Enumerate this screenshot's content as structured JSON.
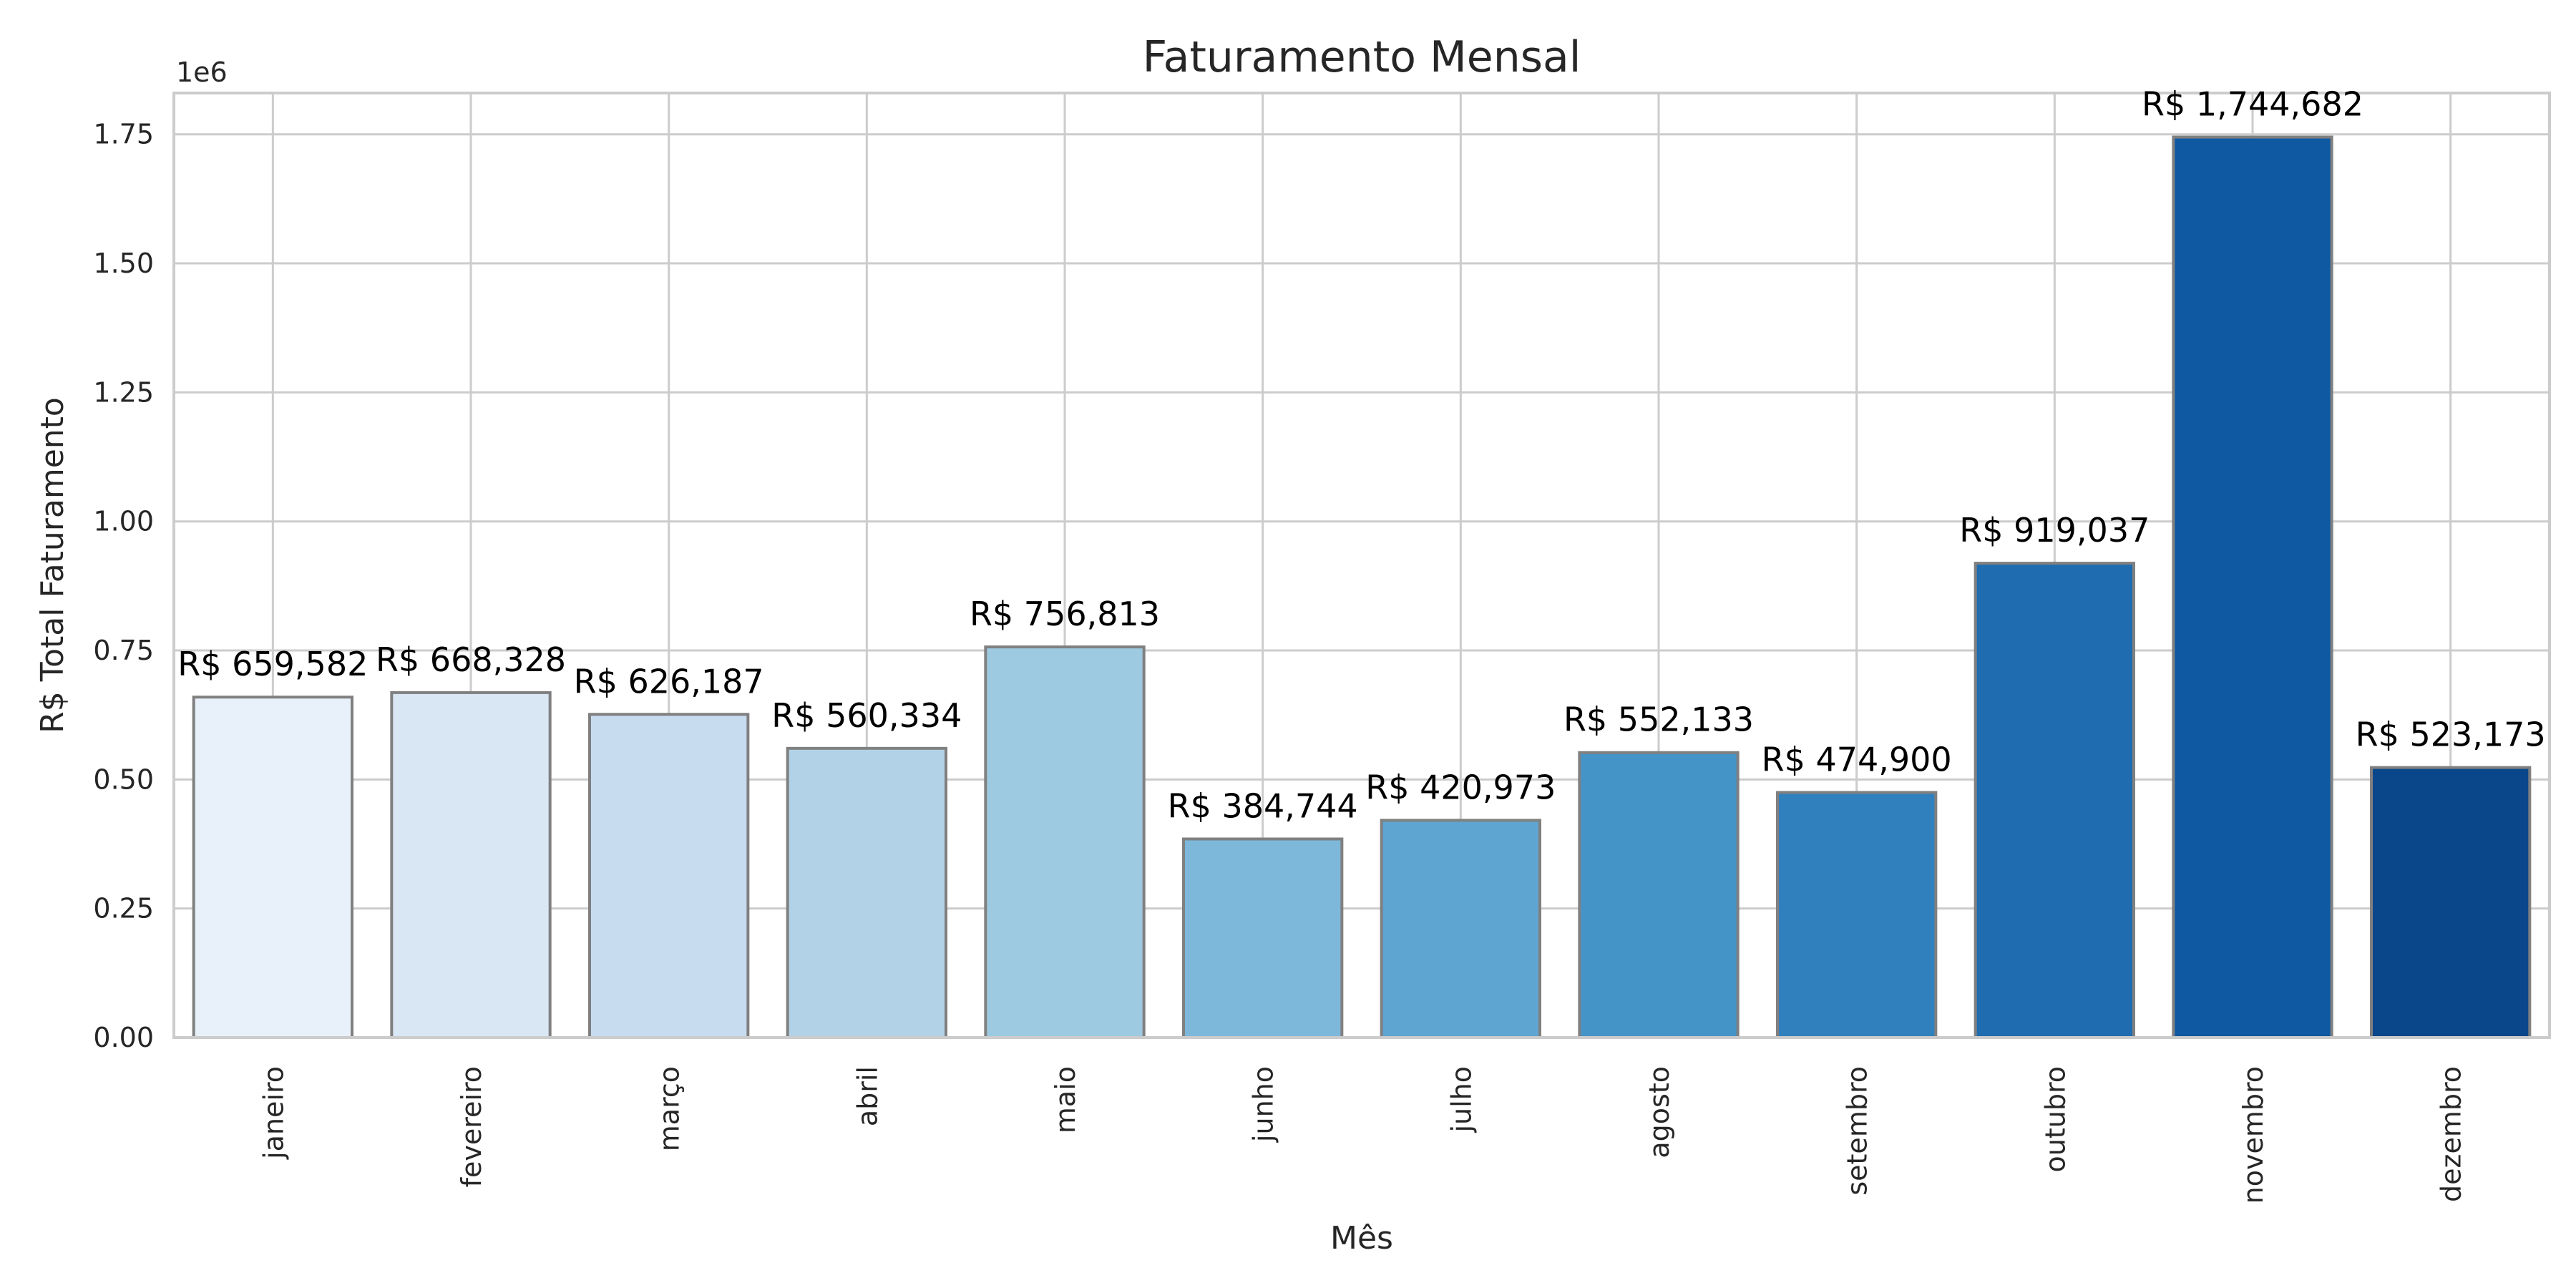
{
  "chart_data": {
    "type": "bar",
    "title": "Faturamento Mensal",
    "xlabel": "Mês",
    "ylabel": "R$ Total Faturamento",
    "y_offset_text": "1e6",
    "ylim": [
      0,
      1830000
    ],
    "y_ticks": [
      0,
      250000,
      500000,
      750000,
      1000000,
      1250000,
      1500000,
      1750000
    ],
    "y_tick_labels": [
      "0.00",
      "0.25",
      "0.50",
      "0.75",
      "1.00",
      "1.25",
      "1.50",
      "1.75"
    ],
    "grid": true,
    "categories": [
      "janeiro",
      "fevereiro",
      "março",
      "abril",
      "maio",
      "junho",
      "julho",
      "agosto",
      "setembro",
      "outubro",
      "novembro",
      "dezembro"
    ],
    "values": [
      659582,
      668328,
      626187,
      560334,
      756813,
      384744,
      420973,
      552133,
      474900,
      919037,
      1744682,
      523173
    ],
    "data_labels": [
      "R$ 659,582",
      "R$ 668,328",
      "R$ 626,187",
      "R$ 560,334",
      "R$ 756,813",
      "R$ 384,744",
      "R$ 420,973",
      "R$ 552,133",
      "R$ 474,900",
      "R$ 919,037",
      "R$ 1,744,682",
      "R$ 523,173"
    ],
    "colors": [
      "#e8f0f9",
      "#d9e7f5",
      "#c8dcf0",
      "#b2d2e8",
      "#9dc9e1",
      "#7db8da",
      "#5ea5d1",
      "#4594c7",
      "#3080bd",
      "#1f6cb0",
      "#0f59a3",
      "#09468a"
    ],
    "edge_color": "#808080"
  }
}
